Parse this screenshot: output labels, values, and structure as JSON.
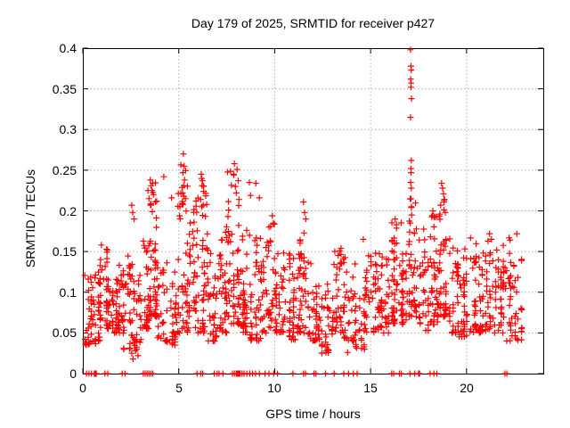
{
  "chart_data": {
    "type": "scatter",
    "title": "Day 179 of 2025, SRMTID for receiver p427",
    "xlabel": "GPS time / hours",
    "ylabel": "SRMTID / TECUs",
    "xlim": [
      0,
      24
    ],
    "ylim": [
      0,
      0.4
    ],
    "xticks": [
      0,
      5,
      10,
      15,
      20
    ],
    "yticks": [
      0,
      0.05,
      0.1,
      0.15,
      0.2,
      0.25,
      0.3,
      0.35,
      0.4
    ],
    "xtick_labels": [
      "0",
      "5",
      "10",
      "15",
      "20"
    ],
    "ytick_labels": [
      "0",
      "0.05",
      "0.1",
      "0.15",
      "0.2",
      "0.25",
      "0.3",
      "0.35",
      "0.4"
    ],
    "grid": true,
    "legend": "none",
    "background": "#ffffff",
    "text_color": "#000000",
    "axis_color": "#000000",
    "grid_color": "#b0b0b0",
    "marker": {
      "shape": "plus",
      "color": "#ff0000",
      "size": 7
    },
    "outlier_points": [
      [
        0.97,
        0.158
      ],
      [
        1.28,
        0.152
      ],
      [
        2.55,
        0.207
      ],
      [
        2.6,
        0.198
      ],
      [
        2.67,
        0.19
      ],
      [
        2.55,
        0.025
      ],
      [
        2.62,
        0.018
      ],
      [
        2.75,
        0.028
      ],
      [
        2.88,
        0.022
      ],
      [
        3.4,
        0.225
      ],
      [
        3.45,
        0.215
      ],
      [
        3.52,
        0.238
      ],
      [
        3.56,
        0.231
      ],
      [
        3.6,
        0.225
      ],
      [
        3.64,
        0.234
      ],
      [
        3.68,
        0.22
      ],
      [
        3.55,
        0.207
      ],
      [
        3.62,
        0.199
      ],
      [
        4.22,
        0.242
      ],
      [
        4.63,
        0.216
      ],
      [
        5.06,
        0.205
      ],
      [
        5.2,
        0.222
      ],
      [
        5.22,
        0.247
      ],
      [
        5.24,
        0.27
      ],
      [
        5.26,
        0.231
      ],
      [
        5.28,
        0.255
      ],
      [
        5.3,
        0.238
      ],
      [
        5.35,
        0.215
      ],
      [
        6.14,
        0.214
      ],
      [
        6.17,
        0.245
      ],
      [
        6.21,
        0.231
      ],
      [
        6.24,
        0.237
      ],
      [
        6.27,
        0.207
      ],
      [
        6.3,
        0.224
      ],
      [
        7.87,
        0.244
      ],
      [
        7.9,
        0.258
      ],
      [
        7.95,
        0.23
      ],
      [
        8.0,
        0.222
      ],
      [
        8.04,
        0.251
      ],
      [
        8.1,
        0.237
      ],
      [
        8.14,
        0.214
      ],
      [
        8.68,
        0.235
      ],
      [
        8.74,
        0.219
      ],
      [
        9.02,
        0.234
      ],
      [
        9.2,
        0.216
      ],
      [
        9.88,
        0.194
      ],
      [
        9.93,
        0.185
      ],
      [
        11.5,
        0.211
      ],
      [
        11.56,
        0.198
      ],
      [
        11.62,
        0.19
      ],
      [
        13.8,
        0.026
      ],
      [
        14.62,
        0.165
      ],
      [
        16.28,
        0.19
      ],
      [
        16.35,
        0.183
      ],
      [
        17.08,
        0.398
      ],
      [
        17.1,
        0.378
      ],
      [
        17.12,
        0.373
      ],
      [
        17.09,
        0.362
      ],
      [
        17.11,
        0.357
      ],
      [
        17.1,
        0.352
      ],
      [
        17.13,
        0.338
      ],
      [
        17.08,
        0.315
      ],
      [
        17.12,
        0.262
      ],
      [
        17.1,
        0.252
      ],
      [
        17.11,
        0.247
      ],
      [
        17.09,
        0.235
      ],
      [
        17.12,
        0.228
      ],
      [
        17.1,
        0.215
      ],
      [
        17.13,
        0.205
      ],
      [
        17.14,
        0.195
      ],
      [
        17.07,
        0.185
      ],
      [
        18.25,
        0.2
      ],
      [
        18.3,
        0.193
      ],
      [
        18.65,
        0.207
      ],
      [
        18.7,
        0.234
      ],
      [
        18.75,
        0.228
      ],
      [
        18.8,
        0.221
      ],
      [
        18.85,
        0.214
      ],
      [
        18.9,
        0.198
      ],
      [
        21.2,
        0.172
      ],
      [
        21.3,
        0.165
      ],
      [
        22.62,
        0.172
      ]
    ],
    "zero_points": [
      0.19,
      0.32,
      0.45,
      0.6,
      0.65,
      0.7,
      1.15,
      1.3,
      2.05,
      2.2,
      3.15,
      3.25,
      3.35,
      3.45,
      3.55,
      3.65,
      5.95,
      6.15,
      6.25,
      6.85,
      7.0,
      7.1,
      7.3,
      7.8,
      7.9,
      8.0,
      8.05,
      8.1,
      8.15,
      8.2,
      8.3,
      8.4,
      8.55,
      8.7,
      8.85,
      9.0,
      9.2,
      9.5,
      9.7,
      9.95,
      10.15,
      10.95,
      11.5,
      11.6,
      12.05,
      12.15,
      12.65,
      13.1,
      13.6,
      13.85,
      14.1,
      14.3,
      16.1,
      16.2,
      16.5,
      16.6,
      17.05,
      17.3,
      17.5,
      17.55,
      18.1,
      18.3,
      18.45,
      22.0,
      22.1
    ],
    "cloud_segments": [
      [
        0.05,
        0.7,
        42,
        0.035,
        0.125
      ],
      [
        0.7,
        1.15,
        30,
        0.04,
        0.16
      ],
      [
        1.15,
        1.6,
        45,
        0.055,
        0.155
      ],
      [
        1.6,
        2.1,
        35,
        0.05,
        0.135
      ],
      [
        2.1,
        2.6,
        40,
        0.03,
        0.145
      ],
      [
        2.6,
        3.1,
        30,
        0.03,
        0.125
      ],
      [
        3.1,
        3.5,
        35,
        0.055,
        0.165
      ],
      [
        3.5,
        3.9,
        48,
        0.07,
        0.24
      ],
      [
        3.9,
        4.4,
        28,
        0.04,
        0.14
      ],
      [
        4.4,
        4.9,
        28,
        0.035,
        0.13
      ],
      [
        4.9,
        5.5,
        45,
        0.05,
        0.26
      ],
      [
        5.5,
        6.0,
        40,
        0.055,
        0.215
      ],
      [
        6.0,
        6.5,
        45,
        0.05,
        0.24
      ],
      [
        6.5,
        7.0,
        35,
        0.04,
        0.16
      ],
      [
        7.0,
        7.5,
        40,
        0.05,
        0.185
      ],
      [
        7.5,
        8.2,
        55,
        0.06,
        0.25
      ],
      [
        8.2,
        8.7,
        40,
        0.05,
        0.18
      ],
      [
        8.7,
        9.3,
        40,
        0.04,
        0.175
      ],
      [
        9.3,
        10.0,
        45,
        0.05,
        0.19
      ],
      [
        10.0,
        10.6,
        40,
        0.05,
        0.175
      ],
      [
        10.6,
        11.1,
        35,
        0.04,
        0.15
      ],
      [
        11.1,
        11.7,
        45,
        0.05,
        0.18
      ],
      [
        11.7,
        12.3,
        35,
        0.04,
        0.14
      ],
      [
        12.3,
        13.0,
        40,
        0.025,
        0.12
      ],
      [
        13.0,
        13.6,
        40,
        0.05,
        0.155
      ],
      [
        13.6,
        14.2,
        35,
        0.04,
        0.145
      ],
      [
        14.2,
        14.8,
        30,
        0.03,
        0.125
      ],
      [
        14.8,
        15.4,
        35,
        0.05,
        0.15
      ],
      [
        15.4,
        16.0,
        40,
        0.05,
        0.155
      ],
      [
        16.0,
        16.6,
        45,
        0.06,
        0.19
      ],
      [
        16.6,
        17.0,
        35,
        0.06,
        0.16
      ],
      [
        17.0,
        17.4,
        40,
        0.07,
        0.22
      ],
      [
        17.4,
        18.0,
        35,
        0.05,
        0.18
      ],
      [
        18.0,
        18.5,
        40,
        0.06,
        0.2
      ],
      [
        18.5,
        19.0,
        45,
        0.07,
        0.225
      ],
      [
        19.0,
        19.6,
        35,
        0.05,
        0.17
      ],
      [
        19.6,
        20.2,
        35,
        0.045,
        0.155
      ],
      [
        20.2,
        20.8,
        40,
        0.05,
        0.17
      ],
      [
        20.8,
        21.4,
        40,
        0.05,
        0.17
      ],
      [
        21.4,
        22.0,
        40,
        0.05,
        0.165
      ],
      [
        22.0,
        22.9,
        50,
        0.04,
        0.17
      ]
    ]
  }
}
